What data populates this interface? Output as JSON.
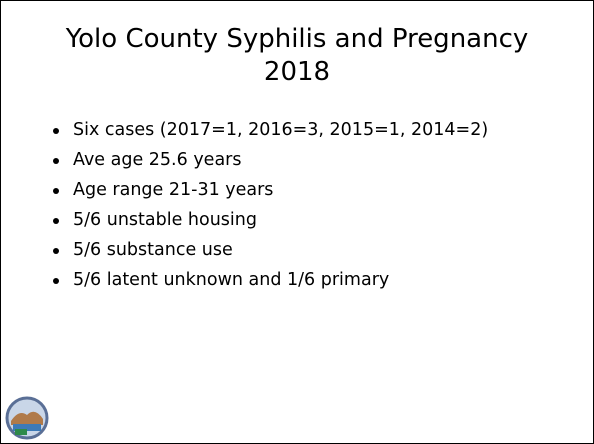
{
  "header": {
    "title": [
      "Yolo County Syphilis and Pregnancy",
      "2018"
    ]
  },
  "bullets": [
    "Six cases (2017=1, 2016=3, 2015=1, 2014=2)",
    "Ave age 25.6 years",
    "Age range 21-31 years",
    "5/6 unstable housing",
    "5/6 substance use",
    "5/6 latent unknown and 1/6 primary"
  ]
}
